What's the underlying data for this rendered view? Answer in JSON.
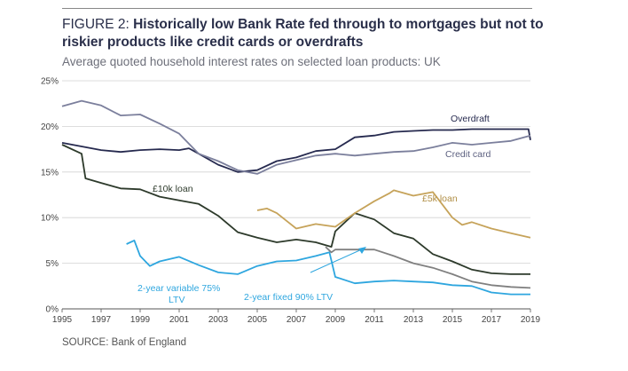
{
  "figure_label": "FIGURE 2: ",
  "title": "Historically low Bank Rate fed through to mortgages but not to riskier products like credit cards or overdrafts",
  "subtitle": "Average quoted household interest rates on selected loan products: UK",
  "source": "SOURCE: Bank of England",
  "colors": {
    "overdraft": "#262a4f",
    "credit_card": "#7b7f9c",
    "ten_k_loan": "#2d3a2b",
    "five_k_loan": "#c6a35a",
    "two_year_variable": "#2ea6df",
    "two_year_fixed": "#808080",
    "grid": "#d2d2d2"
  },
  "chart_data": {
    "type": "line",
    "title": "",
    "xlabel": "",
    "ylabel": "",
    "xlim": [
      1995,
      2019
    ],
    "ylim": [
      0,
      25
    ],
    "grid": "horizontal",
    "x_ticks": [
      "1995",
      "1997",
      "1999",
      "2001",
      "2003",
      "2005",
      "2007",
      "2009",
      "2011",
      "2013",
      "2015",
      "2017",
      "2019"
    ],
    "y_ticks": [
      "0%",
      "5%",
      "10%",
      "15%",
      "20%",
      "25%"
    ],
    "annotations": [
      {
        "text": "Overdraft",
        "series": "overdraft"
      },
      {
        "text": "Credit card",
        "series": "credit_card"
      },
      {
        "text": "£10k loan",
        "series": "ten_k_loan"
      },
      {
        "text": "£5k loan",
        "series": "five_k_loan"
      },
      {
        "text": "2-year variable 75% LTV",
        "series": "two_year_variable"
      },
      {
        "text": "2-year fixed 90% LTV",
        "series": "two_year_fixed"
      }
    ],
    "series": [
      {
        "key": "overdraft",
        "name": "Overdraft",
        "x": [
          1995,
          1996,
          1997,
          1998,
          1999,
          2000,
          2001,
          2001.5,
          2002,
          2003,
          2004,
          2005,
          2006,
          2007,
          2008,
          2009,
          2010,
          2011,
          2012,
          2013,
          2014,
          2015,
          2016,
          2017,
          2018,
          2018.9,
          2019
        ],
        "y": [
          18.2,
          17.8,
          17.4,
          17.2,
          17.4,
          17.5,
          17.4,
          17.6,
          17.0,
          15.8,
          15.0,
          15.2,
          16.2,
          16.6,
          17.3,
          17.5,
          18.8,
          19.0,
          19.4,
          19.5,
          19.6,
          19.6,
          19.7,
          19.7,
          19.7,
          19.7,
          18.5
        ]
      },
      {
        "key": "credit_card",
        "name": "Credit card",
        "x": [
          1995,
          1996,
          1997,
          1998,
          1999,
          2000,
          2001,
          2002,
          2003,
          2004,
          2005,
          2006,
          2007,
          2008,
          2009,
          2010,
          2011,
          2012,
          2013,
          2014,
          2015,
          2016,
          2017,
          2018,
          2019
        ],
        "y": [
          22.2,
          22.8,
          22.3,
          21.2,
          21.3,
          20.3,
          19.2,
          17.0,
          16.2,
          15.2,
          14.8,
          15.8,
          16.3,
          16.8,
          17.0,
          16.8,
          17.0,
          17.2,
          17.3,
          17.7,
          18.2,
          18.0,
          18.2,
          18.4,
          19.0
        ]
      },
      {
        "key": "ten_k_loan",
        "name": "£10k loan",
        "x": [
          1995,
          1996,
          1996.2,
          1997,
          1998,
          1999,
          2000,
          2001,
          2002,
          2003,
          2004,
          2005,
          2006,
          2007,
          2008,
          2008.8,
          2009,
          2010,
          2011,
          2012,
          2013,
          2014,
          2015,
          2016,
          2017,
          2018,
          2019
        ],
        "y": [
          18.0,
          17.0,
          14.3,
          13.8,
          13.2,
          13.1,
          12.3,
          11.9,
          11.5,
          10.2,
          8.4,
          7.8,
          7.3,
          7.6,
          7.3,
          6.8,
          8.5,
          10.5,
          9.8,
          8.3,
          7.7,
          6.0,
          5.2,
          4.3,
          3.9,
          3.8,
          3.8
        ]
      },
      {
        "key": "five_k_loan",
        "name": "£5k loan",
        "x": [
          2005,
          2005.5,
          2006,
          2007,
          2008,
          2009,
          2010,
          2011,
          2011.8,
          2012,
          2013,
          2014,
          2015,
          2015.5,
          2016,
          2017,
          2018,
          2019
        ],
        "y": [
          10.8,
          11.0,
          10.5,
          8.8,
          9.3,
          9.0,
          10.5,
          11.8,
          12.7,
          13.0,
          12.4,
          12.8,
          10.0,
          9.2,
          9.5,
          8.8,
          8.3,
          7.8
        ]
      },
      {
        "key": "two_year_variable",
        "name": "2-year variable 75% LTV",
        "x": [
          1998.3,
          1998.7,
          1999,
          1999.5,
          2000,
          2001,
          2002,
          2003,
          2004,
          2005,
          2006,
          2007,
          2008,
          2008.7,
          2009,
          2010,
          2011,
          2012,
          2013,
          2014,
          2015,
          2016,
          2017,
          2018,
          2019
        ],
        "y": [
          7.1,
          7.5,
          5.8,
          4.7,
          5.2,
          5.7,
          4.8,
          4.0,
          3.8,
          4.7,
          5.2,
          5.3,
          5.8,
          6.2,
          3.5,
          2.8,
          3.0,
          3.1,
          3.0,
          2.9,
          2.6,
          2.5,
          1.8,
          1.6,
          1.6
        ]
      },
      {
        "key": "two_year_fixed",
        "name": "2-year fixed 90% LTV",
        "x": [
          2008.5,
          2008.8,
          2009,
          2010,
          2011,
          2012,
          2013,
          2014,
          2015,
          2016,
          2017,
          2018,
          2019
        ],
        "y": [
          6.8,
          6.2,
          6.5,
          6.5,
          6.5,
          5.8,
          5.0,
          4.5,
          3.8,
          3.0,
          2.6,
          2.4,
          2.3
        ]
      }
    ]
  }
}
